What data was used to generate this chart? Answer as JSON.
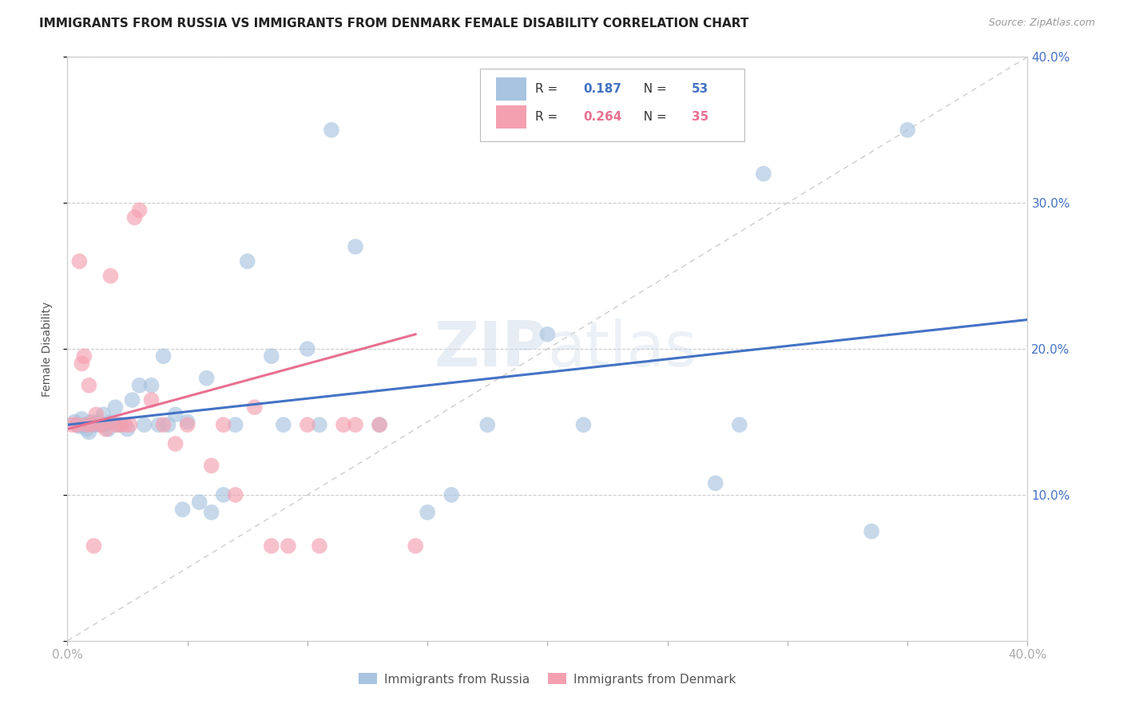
{
  "title": "IMMIGRANTS FROM RUSSIA VS IMMIGRANTS FROM DENMARK FEMALE DISABILITY CORRELATION CHART",
  "source": "Source: ZipAtlas.com",
  "ylabel": "Female Disability",
  "xlim": [
    0.0,
    0.4
  ],
  "ylim": [
    0.0,
    0.4
  ],
  "grid_color": "#cccccc",
  "background_color": "#ffffff",
  "watermark": "ZIPatlas",
  "legend_R1": "0.187",
  "legend_N1": "53",
  "legend_R2": "0.264",
  "legend_N2": "35",
  "russia_color": "#a8c4e0",
  "denmark_color": "#f4a0b0",
  "russia_line_color": "#4472c4",
  "denmark_line_color": "#e87090",
  "diagonal_color": "#c8c8c8",
  "russia_line_x0": 0.0,
  "russia_line_y0": 0.148,
  "russia_line_x1": 0.4,
  "russia_line_y1": 0.22,
  "denmark_line_x0": 0.0,
  "denmark_line_y0": 0.145,
  "denmark_line_x1": 0.145,
  "denmark_line_y1": 0.21,
  "russia_scatter_x": [
    0.003,
    0.004,
    0.005,
    0.006,
    0.007,
    0.008,
    0.009,
    0.01,
    0.011,
    0.012,
    0.013,
    0.014,
    0.015,
    0.016,
    0.017,
    0.018,
    0.02,
    0.021,
    0.022,
    0.025,
    0.027,
    0.03,
    0.032,
    0.035,
    0.038,
    0.04,
    0.042,
    0.045,
    0.048,
    0.05,
    0.055,
    0.058,
    0.06,
    0.065,
    0.07,
    0.075,
    0.085,
    0.09,
    0.1,
    0.105,
    0.11,
    0.12,
    0.13,
    0.15,
    0.16,
    0.175,
    0.2,
    0.215,
    0.27,
    0.28,
    0.29,
    0.335,
    0.35
  ],
  "russia_scatter_y": [
    0.15,
    0.148,
    0.147,
    0.152,
    0.148,
    0.145,
    0.143,
    0.15,
    0.148,
    0.148,
    0.15,
    0.148,
    0.155,
    0.148,
    0.145,
    0.15,
    0.16,
    0.148,
    0.148,
    0.145,
    0.165,
    0.175,
    0.148,
    0.175,
    0.148,
    0.195,
    0.148,
    0.155,
    0.09,
    0.15,
    0.095,
    0.18,
    0.088,
    0.1,
    0.148,
    0.26,
    0.195,
    0.148,
    0.2,
    0.148,
    0.35,
    0.27,
    0.148,
    0.088,
    0.1,
    0.148,
    0.21,
    0.148,
    0.108,
    0.148,
    0.32,
    0.075,
    0.35
  ],
  "denmark_scatter_x": [
    0.002,
    0.004,
    0.005,
    0.006,
    0.007,
    0.008,
    0.009,
    0.01,
    0.011,
    0.012,
    0.014,
    0.016,
    0.018,
    0.02,
    0.022,
    0.024,
    0.026,
    0.028,
    0.03,
    0.035,
    0.04,
    0.045,
    0.05,
    0.06,
    0.065,
    0.07,
    0.078,
    0.085,
    0.092,
    0.1,
    0.105,
    0.115,
    0.12,
    0.13,
    0.145
  ],
  "denmark_scatter_y": [
    0.148,
    0.148,
    0.26,
    0.19,
    0.195,
    0.148,
    0.175,
    0.148,
    0.065,
    0.155,
    0.148,
    0.145,
    0.25,
    0.148,
    0.148,
    0.148,
    0.148,
    0.29,
    0.295,
    0.165,
    0.148,
    0.135,
    0.148,
    0.12,
    0.148,
    0.1,
    0.16,
    0.065,
    0.065,
    0.148,
    0.065,
    0.148,
    0.148,
    0.148,
    0.065
  ]
}
